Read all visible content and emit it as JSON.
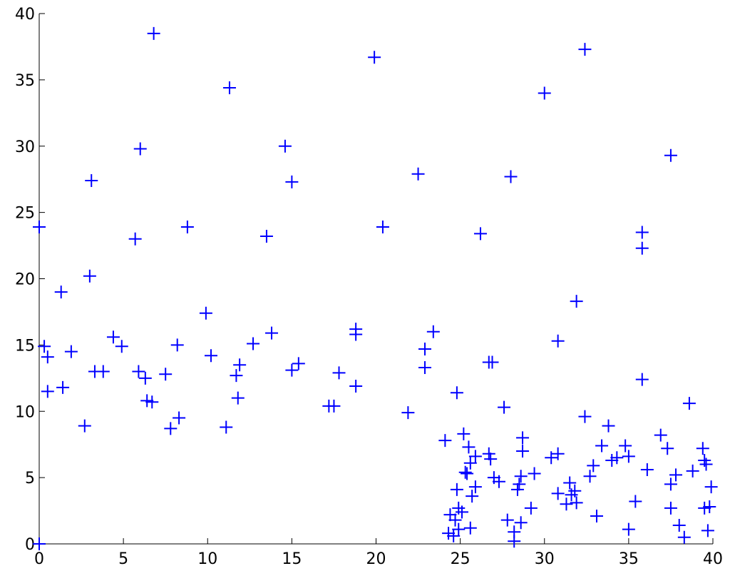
{
  "chart_data": {
    "type": "scatter",
    "color": "#0000ff",
    "xlim": [
      0,
      40
    ],
    "ylim": [
      0,
      40
    ],
    "xticks": [
      0,
      5,
      10,
      15,
      20,
      25,
      30,
      35,
      40
    ],
    "yticks": [
      0,
      5,
      10,
      15,
      20,
      25,
      30,
      35,
      40
    ],
    "x": [
      0,
      6.8,
      11.3,
      19.9,
      32.4,
      30,
      14.6,
      6.0,
      3.1,
      15.0,
      22.5,
      28.0,
      37.5,
      5.7,
      8.8,
      13.5,
      20.4,
      26.2,
      35.8,
      35.8,
      3.0,
      1.3,
      9.9,
      31.9,
      0.3,
      0.5,
      0.5,
      1.4,
      1.9,
      2.7,
      3.3,
      3.8,
      4.4,
      4.9,
      5.9,
      6.3,
      6.4,
      6.7,
      7.5,
      7.8,
      8.2,
      8.3,
      10.2,
      11.1,
      11.7,
      11.8,
      11.9,
      12.7,
      13.8,
      15.0,
      15.4,
      17.2,
      17.5,
      17.8,
      18.8,
      18.8,
      18.8,
      21.9,
      22.9,
      22.9,
      23.4,
      24.8,
      26.7,
      26.9,
      30.8,
      35.8,
      38.6,
      27.6,
      32.4,
      33.8,
      24.1,
      25.2,
      25.5,
      25.6,
      25.9,
      25.3,
      25.4,
      25.9,
      25.7,
      24.8,
      26.7,
      26.8,
      27.0,
      27.3,
      28.7,
      28.7,
      28.6,
      28.4,
      28.5,
      29.4,
      30.4,
      30.8,
      30.8,
      31.5,
      31.6,
      31.3,
      31.9,
      31.8,
      32.7,
      32.9,
      33.4,
      34.0,
      34.3,
      34.8,
      35.0,
      36.1,
      35.4,
      35.0,
      36.9,
      37.3,
      37.5,
      37.8,
      38.8,
      39.4,
      39.5,
      39.6,
      39.9,
      39.5,
      39.8,
      39.7,
      38.0,
      38.3,
      37.5,
      33.1,
      29.2,
      27.8,
      28.2,
      28.2,
      28.6,
      24.4,
      24.7,
      24.9,
      25.1,
      25.6,
      24.3,
      24.6,
      24.9,
      0
    ],
    "values": [
      23.9,
      38.5,
      34.4,
      36.7,
      37.3,
      34,
      30.0,
      29.8,
      27.4,
      27.3,
      27.9,
      27.7,
      29.3,
      23.0,
      23.9,
      23.2,
      23.9,
      23.4,
      23.5,
      22.3,
      20.2,
      19.0,
      17.4,
      18.3,
      14.9,
      14.1,
      11.5,
      11.8,
      14.5,
      8.9,
      13.0,
      13.0,
      15.6,
      14.9,
      13.0,
      12.5,
      10.8,
      10.7,
      12.8,
      8.7,
      15.0,
      9.5,
      14.2,
      8.8,
      12.7,
      11.0,
      13.5,
      15.1,
      15.9,
      13.1,
      13.6,
      10.4,
      10.4,
      12.9,
      16.2,
      15.8,
      11.9,
      9.9,
      14.7,
      13.3,
      16.0,
      11.4,
      13.7,
      13.7,
      15.3,
      12.4,
      10.6,
      10.3,
      9.6,
      8.9,
      7.8,
      8.3,
      7.3,
      6.1,
      6.6,
      5.4,
      5.3,
      4.3,
      3.6,
      4.1,
      6.8,
      6.4,
      5.0,
      4.7,
      8.0,
      7.0,
      5.1,
      4.1,
      4.5,
      5.3,
      6.5,
      6.8,
      3.8,
      4.6,
      3.7,
      3.0,
      3.1,
      4.0,
      5.1,
      5.9,
      7.4,
      6.3,
      6.5,
      7.4,
      6.6,
      5.6,
      3.2,
      1.1,
      8.2,
      7.2,
      4.5,
      5.2,
      5.5,
      7.2,
      6.3,
      6.0,
      4.3,
      2.7,
      2.8,
      1.0,
      1.4,
      0.5,
      2.7,
      2.1,
      2.7,
      1.8,
      0.9,
      0.2,
      1.6,
      2.2,
      1.8,
      2.7,
      2.4,
      1.2,
      0.8,
      0.6,
      1.1,
      0
    ]
  }
}
